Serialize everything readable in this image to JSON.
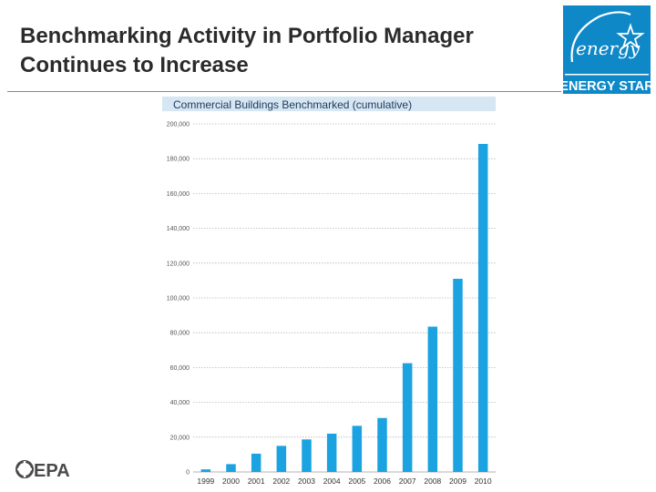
{
  "slide": {
    "title_line1": "Benchmarking Activity in Portfolio Manager",
    "title_line2": "Continues to Increase"
  },
  "logos": {
    "energy_star_script": "energy",
    "energy_star_label": "ENERGY STAR",
    "epa_label": "EPA"
  },
  "colors": {
    "bar": "#1aa3e0",
    "title_band": "#d6e6f2",
    "grid": "#b8b8b8",
    "energy_star_blue": "#0f88c8"
  },
  "chart_data": {
    "type": "bar",
    "title": "Commercial Buildings Benchmarked (cumulative)",
    "xlabel": "",
    "ylabel": "",
    "ylim": [
      0,
      200000
    ],
    "yticks": [
      0,
      20000,
      40000,
      60000,
      80000,
      100000,
      120000,
      140000,
      160000,
      180000,
      200000
    ],
    "ytick_labels": [
      "0",
      "20,000",
      "40,000",
      "60,000",
      "80,000",
      "100,000",
      "120,000",
      "140,000",
      "160,000",
      "180,000",
      "200,000"
    ],
    "categories": [
      "1999",
      "2000",
      "2001",
      "2002",
      "2003",
      "2004",
      "2005",
      "2006",
      "2007",
      "2008",
      "2009",
      "2010"
    ],
    "values": [
      1500,
      4500,
      10500,
      15000,
      18700,
      22000,
      26500,
      31000,
      62500,
      83500,
      111000,
      188500
    ],
    "grid": true
  }
}
